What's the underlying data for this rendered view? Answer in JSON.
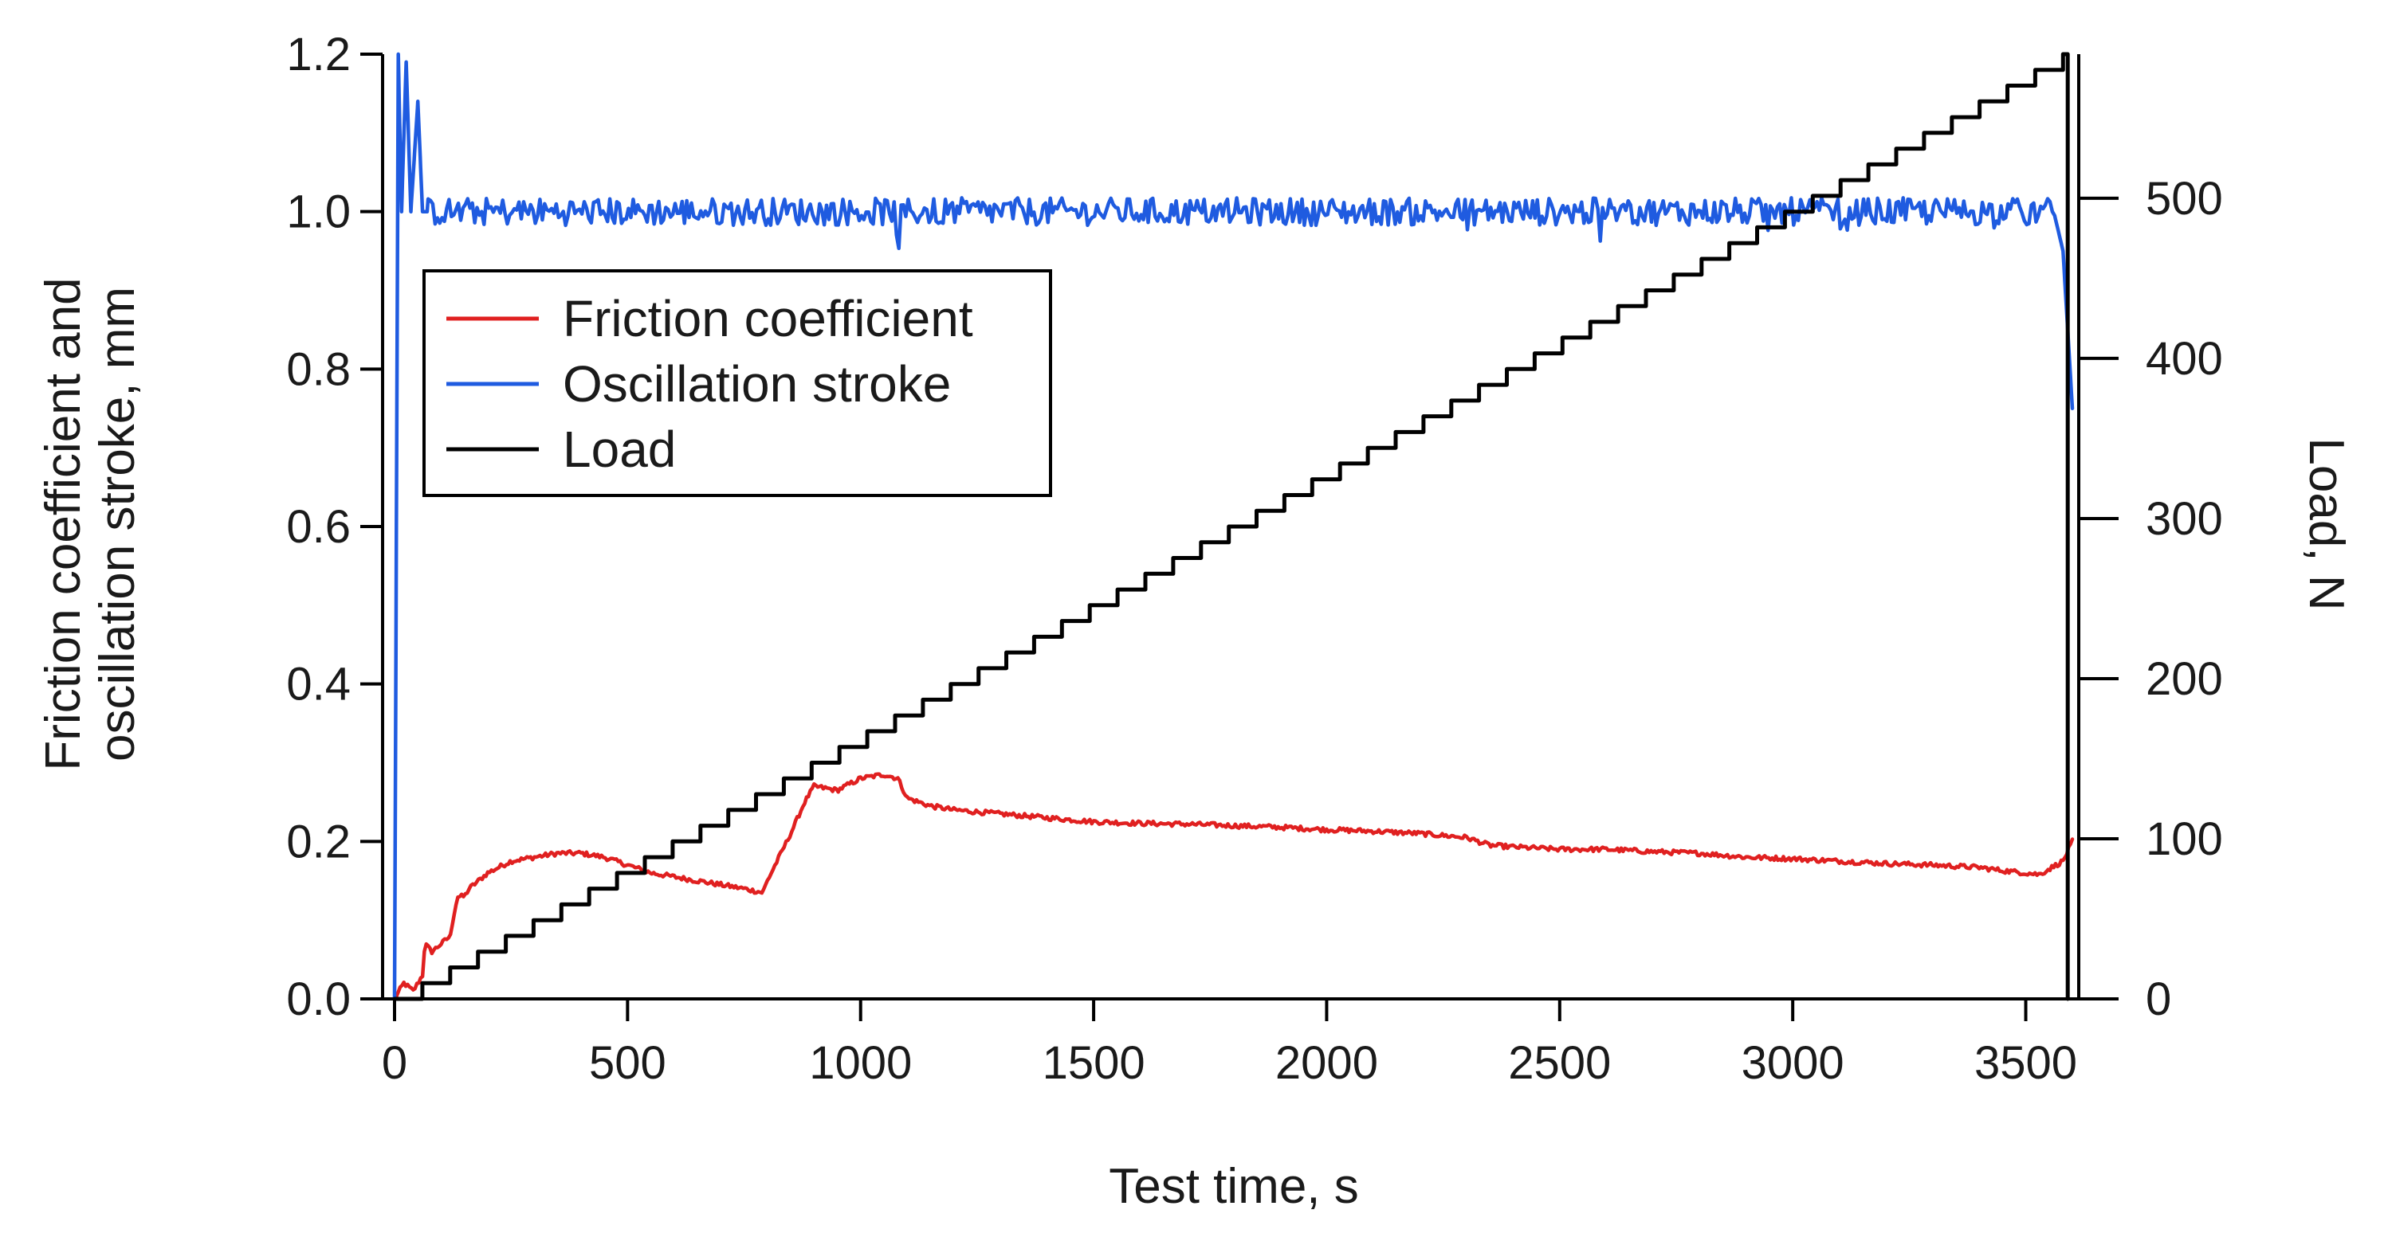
{
  "chart_data": {
    "type": "line",
    "x_axis": {
      "label": "Test time, s",
      "range": [
        0,
        3600
      ],
      "ticks": [
        0,
        500,
        1000,
        1500,
        2000,
        2500,
        3000,
        3500
      ]
    },
    "y_left": {
      "label": "Friction coefficient and oscillation stroke, mm",
      "label_lines": [
        "Friction coefficient and",
        "oscillation stroke, mm"
      ],
      "range": [
        0,
        1.2
      ],
      "ticks": [
        0.0,
        0.2,
        0.4,
        0.6,
        0.8,
        1.0,
        1.2
      ],
      "tick_labels": [
        "0.0",
        "0.2",
        "0.4",
        "0.6",
        "0.8",
        "1.0",
        "1.2"
      ]
    },
    "y_right": {
      "label": "Load, N",
      "range": [
        0,
        590
      ],
      "ticks": [
        0,
        100,
        200,
        300,
        400,
        500
      ],
      "tick_labels": [
        "0",
        "100",
        "200",
        "300",
        "400",
        "500"
      ]
    },
    "legend": {
      "position": "upper-left",
      "entries": [
        {
          "name": "Friction coefficient",
          "color": "#e02020"
        },
        {
          "name": "Oscillation stroke",
          "color": "#1f5be0"
        },
        {
          "name": "Load",
          "color": "#000000"
        }
      ]
    },
    "series": [
      {
        "name": "Friction coefficient",
        "axis": "left",
        "color": "#e02020",
        "x": [
          0,
          10,
          20,
          30,
          40,
          60,
          65,
          80,
          100,
          120,
          125,
          135,
          150,
          160,
          180,
          200,
          250,
          300,
          350,
          400,
          450,
          500,
          550,
          600,
          650,
          700,
          750,
          790,
          800,
          850,
          880,
          900,
          950,
          1000,
          1050,
          1080,
          1100,
          1150,
          1200,
          1300,
          1400,
          1500,
          1600,
          1700,
          1800,
          1900,
          2000,
          2100,
          2200,
          2300,
          2350,
          2400,
          2500,
          2600,
          2700,
          2800,
          2900,
          3000,
          3100,
          3200,
          3300,
          3400,
          3450,
          3500,
          3530,
          3550,
          3580,
          3600
        ],
        "y": [
          0.0,
          0.01,
          0.02,
          0.015,
          0.01,
          0.03,
          0.07,
          0.06,
          0.07,
          0.08,
          0.1,
          0.13,
          0.13,
          0.14,
          0.15,
          0.16,
          0.175,
          0.18,
          0.185,
          0.185,
          0.18,
          0.17,
          0.16,
          0.155,
          0.15,
          0.145,
          0.14,
          0.135,
          0.15,
          0.21,
          0.25,
          0.27,
          0.265,
          0.28,
          0.285,
          0.28,
          0.255,
          0.245,
          0.24,
          0.235,
          0.23,
          0.225,
          0.223,
          0.222,
          0.22,
          0.218,
          0.215,
          0.213,
          0.21,
          0.205,
          0.195,
          0.193,
          0.19,
          0.19,
          0.187,
          0.185,
          0.18,
          0.178,
          0.175,
          0.172,
          0.17,
          0.167,
          0.163,
          0.16,
          0.158,
          0.165,
          0.175,
          0.2
        ]
      },
      {
        "name": "Oscillation stroke",
        "axis": "left",
        "color": "#1f5be0",
        "x": [
          0,
          8,
          15,
          25,
          35,
          50,
          60,
          70,
          100,
          200,
          500,
          900,
          1000,
          1200,
          1500,
          1800,
          2000,
          2400,
          2700,
          3000,
          3300,
          3500,
          3560,
          3580,
          3590,
          3600
        ],
        "y": [
          0.0,
          1.2,
          1.0,
          1.19,
          1.0,
          1.14,
          1.0,
          1.0,
          1.0,
          1.0,
          1.0,
          1.0,
          1.0,
          1.0,
          1.0,
          1.0,
          1.0,
          1.0,
          1.0,
          1.0,
          1.0,
          1.0,
          1.0,
          0.95,
          0.85,
          0.75
        ]
      },
      {
        "name": "Load",
        "axis": "right",
        "color": "#000000",
        "x_start": 0,
        "x_end": 3580,
        "y_start": 0,
        "y_end": 590,
        "steps": 60,
        "drop_to_zero_at": 3590
      }
    ]
  }
}
